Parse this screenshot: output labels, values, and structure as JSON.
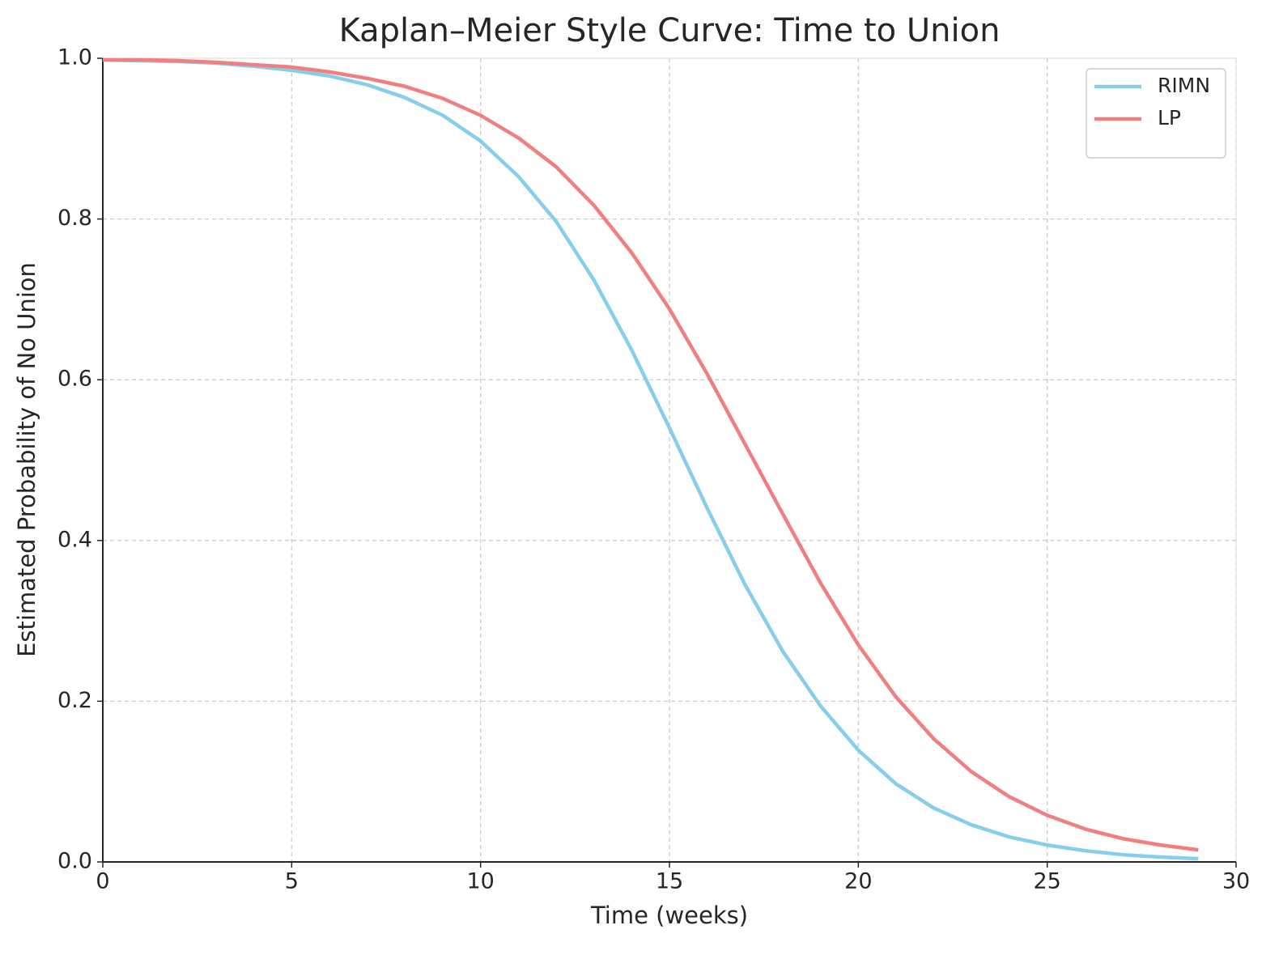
{
  "chart_data": {
    "type": "line",
    "title": "Kaplan–Meier Style Curve: Time to Union",
    "xlabel": "Time (weeks)",
    "ylabel": "Estimated Probability of No Union",
    "x": [
      0,
      1,
      2,
      3,
      4,
      5,
      6,
      7,
      8,
      9,
      10,
      11,
      12,
      13,
      14,
      15,
      16,
      17,
      18,
      19,
      20,
      21,
      22,
      23,
      24,
      25,
      26,
      27,
      28,
      29
    ],
    "series": [
      {
        "name": "RIMN",
        "color": "#87ceeb",
        "values": [
          0.998,
          0.997,
          0.996,
          0.994,
          0.99,
          0.985,
          0.978,
          0.967,
          0.951,
          0.929,
          0.897,
          0.853,
          0.797,
          0.724,
          0.637,
          0.54,
          0.44,
          0.345,
          0.262,
          0.194,
          0.139,
          0.097,
          0.067,
          0.046,
          0.031,
          0.021,
          0.014,
          0.009,
          0.006,
          0.004
        ]
      },
      {
        "name": "LP",
        "color": "#f08080",
        "values": [
          0.998,
          0.998,
          0.997,
          0.995,
          0.992,
          0.989,
          0.983,
          0.975,
          0.965,
          0.95,
          0.929,
          0.901,
          0.865,
          0.817,
          0.758,
          0.688,
          0.607,
          0.52,
          0.433,
          0.347,
          0.27,
          0.205,
          0.153,
          0.112,
          0.081,
          0.058,
          0.041,
          0.029,
          0.021,
          0.015
        ]
      }
    ],
    "xlim": [
      0,
      30
    ],
    "xticks": [
      0,
      5,
      10,
      15,
      20,
      25,
      30
    ],
    "ylim": [
      0,
      1
    ],
    "yticks": [
      {
        "value": 0,
        "label": "0.0"
      },
      0.2,
      0.4,
      0.6,
      0.8,
      {
        "value": 1,
        "label": "1.0"
      }
    ],
    "grid": true,
    "legend": "upper right"
  }
}
